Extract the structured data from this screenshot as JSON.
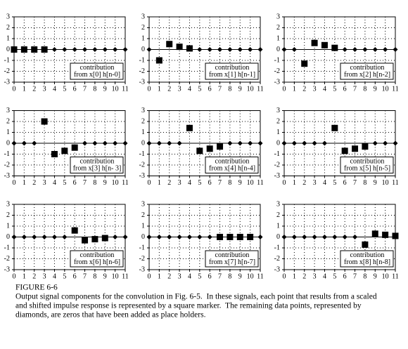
{
  "chart_data": [
    {
      "type": "scatter",
      "x": [
        0,
        1,
        2,
        3,
        4,
        5,
        6,
        7,
        8,
        9,
        10,
        11
      ],
      "values": [
        0,
        0,
        0,
        0,
        0,
        0,
        0,
        0,
        0,
        0,
        0,
        0
      ],
      "markers": [
        "square",
        "square",
        "square",
        "square",
        "diamond",
        "diamond",
        "diamond",
        "diamond",
        "diamond",
        "diamond",
        "diamond",
        "diamond"
      ],
      "annotation": [
        "contribution",
        "from  x[0] h[n-0]"
      ],
      "xlim": [
        0,
        11
      ],
      "ylim": [
        -3,
        3
      ],
      "xticks": [
        0,
        1,
        2,
        3,
        4,
        5,
        6,
        7,
        8,
        9,
        10,
        11
      ],
      "yticks": [
        -3,
        -2,
        -1,
        0,
        1,
        2,
        3
      ],
      "grid": true,
      "color": "#000000"
    },
    {
      "type": "scatter",
      "x": [
        0,
        1,
        2,
        3,
        4,
        5,
        6,
        7,
        8,
        9,
        10,
        11
      ],
      "values": [
        0,
        -1,
        0.5,
        0.25,
        0.1,
        0,
        0,
        0,
        0,
        0,
        0,
        0
      ],
      "markers": [
        "diamond",
        "square",
        "square",
        "square",
        "square",
        "diamond",
        "diamond",
        "diamond",
        "diamond",
        "diamond",
        "diamond",
        "diamond"
      ],
      "annotation": [
        "contribution",
        "from  x[1] h[n-1]"
      ],
      "xlim": [
        0,
        11
      ],
      "ylim": [
        -3,
        3
      ],
      "xticks": [
        0,
        1,
        2,
        3,
        4,
        5,
        6,
        7,
        8,
        9,
        10,
        11
      ],
      "yticks": [
        -3,
        -2,
        -1,
        0,
        1,
        2,
        3
      ],
      "grid": true,
      "color": "#000000"
    },
    {
      "type": "scatter",
      "x": [
        0,
        1,
        2,
        3,
        4,
        5,
        6,
        7,
        8,
        9,
        10,
        11
      ],
      "values": [
        0,
        0,
        -1.3,
        0.6,
        0.4,
        0.15,
        0,
        0,
        0,
        0,
        0,
        0
      ],
      "markers": [
        "diamond",
        "diamond",
        "square",
        "square",
        "square",
        "square",
        "diamond",
        "diamond",
        "diamond",
        "diamond",
        "diamond",
        "diamond"
      ],
      "annotation": [
        "contribution",
        "from  x[2] h[n-2]"
      ],
      "xlim": [
        0,
        11
      ],
      "ylim": [
        -3,
        3
      ],
      "xticks": [
        0,
        1,
        2,
        3,
        4,
        5,
        6,
        7,
        8,
        9,
        10,
        11
      ],
      "yticks": [
        -3,
        -2,
        -1,
        0,
        1,
        2,
        3
      ],
      "grid": true,
      "color": "#000000"
    },
    {
      "type": "scatter",
      "x": [
        0,
        1,
        2,
        3,
        4,
        5,
        6,
        7,
        8,
        9,
        10,
        11
      ],
      "values": [
        0,
        0,
        0,
        2,
        -1,
        -0.7,
        -0.4,
        0,
        0,
        0,
        0,
        0
      ],
      "markers": [
        "diamond",
        "diamond",
        "diamond",
        "square",
        "square",
        "square",
        "square",
        "diamond",
        "diamond",
        "diamond",
        "diamond",
        "diamond"
      ],
      "annotation": [
        "contribution",
        "from  x[3] h[n- 3]"
      ],
      "xlim": [
        0,
        11
      ],
      "ylim": [
        -3,
        3
      ],
      "xticks": [
        0,
        1,
        2,
        3,
        4,
        5,
        6,
        7,
        8,
        9,
        10,
        11
      ],
      "yticks": [
        -3,
        -2,
        -1,
        0,
        1,
        2,
        3
      ],
      "grid": true,
      "color": "#000000"
    },
    {
      "type": "scatter",
      "x": [
        0,
        1,
        2,
        3,
        4,
        5,
        6,
        7,
        8,
        9,
        10,
        11
      ],
      "values": [
        0,
        0,
        0,
        0,
        1.4,
        -0.7,
        -0.5,
        -0.3,
        0,
        0,
        0,
        0
      ],
      "markers": [
        "diamond",
        "diamond",
        "diamond",
        "diamond",
        "square",
        "square",
        "square",
        "square",
        "diamond",
        "diamond",
        "diamond",
        "diamond"
      ],
      "annotation": [
        "contribution",
        "from  x[4] h[n-4]"
      ],
      "xlim": [
        0,
        11
      ],
      "ylim": [
        -3,
        3
      ],
      "xticks": [
        0,
        1,
        2,
        3,
        4,
        5,
        6,
        7,
        8,
        9,
        10,
        11
      ],
      "yticks": [
        -3,
        -2,
        -1,
        0,
        1,
        2,
        3
      ],
      "grid": true,
      "color": "#000000"
    },
    {
      "type": "scatter",
      "x": [
        0,
        1,
        2,
        3,
        4,
        5,
        6,
        7,
        8,
        9,
        10,
        11
      ],
      "values": [
        0,
        0,
        0,
        0,
        0,
        1.4,
        -0.7,
        -0.5,
        -0.3,
        0,
        0,
        0
      ],
      "markers": [
        "diamond",
        "diamond",
        "diamond",
        "diamond",
        "diamond",
        "square",
        "square",
        "square",
        "square",
        "diamond",
        "diamond",
        "diamond"
      ],
      "annotation": [
        "contribution",
        "from  x[5] h[n-5]"
      ],
      "xlim": [
        0,
        11
      ],
      "ylim": [
        -3,
        3
      ],
      "xticks": [
        0,
        1,
        2,
        3,
        4,
        5,
        6,
        7,
        8,
        9,
        10,
        11
      ],
      "yticks": [
        -3,
        -2,
        -1,
        0,
        1,
        2,
        3
      ],
      "grid": true,
      "color": "#000000"
    },
    {
      "type": "scatter",
      "x": [
        0,
        1,
        2,
        3,
        4,
        5,
        6,
        7,
        8,
        9,
        10,
        11
      ],
      "values": [
        0,
        0,
        0,
        0,
        0,
        0,
        0.6,
        -0.3,
        -0.2,
        -0.1,
        0,
        0
      ],
      "markers": [
        "diamond",
        "diamond",
        "diamond",
        "diamond",
        "diamond",
        "diamond",
        "square",
        "square",
        "square",
        "square",
        "diamond",
        "diamond"
      ],
      "annotation": [
        "contribution",
        "from  x[6] h[n-6]"
      ],
      "xlim": [
        0,
        11
      ],
      "ylim": [
        -3,
        3
      ],
      "xticks": [
        0,
        1,
        2,
        3,
        4,
        5,
        6,
        7,
        8,
        9,
        10,
        11
      ],
      "yticks": [
        -3,
        -2,
        -1,
        0,
        1,
        2,
        3
      ],
      "grid": true,
      "color": "#000000"
    },
    {
      "type": "scatter",
      "x": [
        0,
        1,
        2,
        3,
        4,
        5,
        6,
        7,
        8,
        9,
        10,
        11
      ],
      "values": [
        0,
        0,
        0,
        0,
        0,
        0,
        0,
        0,
        0,
        0,
        0,
        0
      ],
      "markers": [
        "diamond",
        "diamond",
        "diamond",
        "diamond",
        "diamond",
        "diamond",
        "diamond",
        "square",
        "square",
        "square",
        "square",
        "diamond"
      ],
      "annotation": [
        "contribution",
        "from  x[7] h[n-7]"
      ],
      "xlim": [
        0,
        11
      ],
      "ylim": [
        -3,
        3
      ],
      "xticks": [
        0,
        1,
        2,
        3,
        4,
        5,
        6,
        7,
        8,
        9,
        10,
        11
      ],
      "yticks": [
        -3,
        -2,
        -1,
        0,
        1,
        2,
        3
      ],
      "grid": true,
      "color": "#000000"
    },
    {
      "type": "scatter",
      "x": [
        0,
        1,
        2,
        3,
        4,
        5,
        6,
        7,
        8,
        9,
        10,
        11
      ],
      "values": [
        0,
        0,
        0,
        0,
        0,
        0,
        0,
        0,
        -0.7,
        0.3,
        0.2,
        0.1
      ],
      "markers": [
        "diamond",
        "diamond",
        "diamond",
        "diamond",
        "diamond",
        "diamond",
        "diamond",
        "diamond",
        "square",
        "square",
        "square",
        "square"
      ],
      "annotation": [
        "contribution",
        "from  x[8] h[n-8]"
      ],
      "xlim": [
        0,
        11
      ],
      "ylim": [
        -3,
        3
      ],
      "xticks": [
        0,
        1,
        2,
        3,
        4,
        5,
        6,
        7,
        8,
        9,
        10,
        11
      ],
      "yticks": [
        -3,
        -2,
        -1,
        0,
        1,
        2,
        3
      ],
      "grid": true,
      "color": "#000000"
    }
  ],
  "caption": {
    "title": "FIGURE 6-6",
    "lines": [
      "Output signal components for the convolution in Fig. 6-5.  In these signals, each point that results from a scaled",
      "and shifted impulse response is represented by a square marker.  The remaining data points, represented by",
      "diamonds, are zeros that have been added as place holders."
    ]
  }
}
